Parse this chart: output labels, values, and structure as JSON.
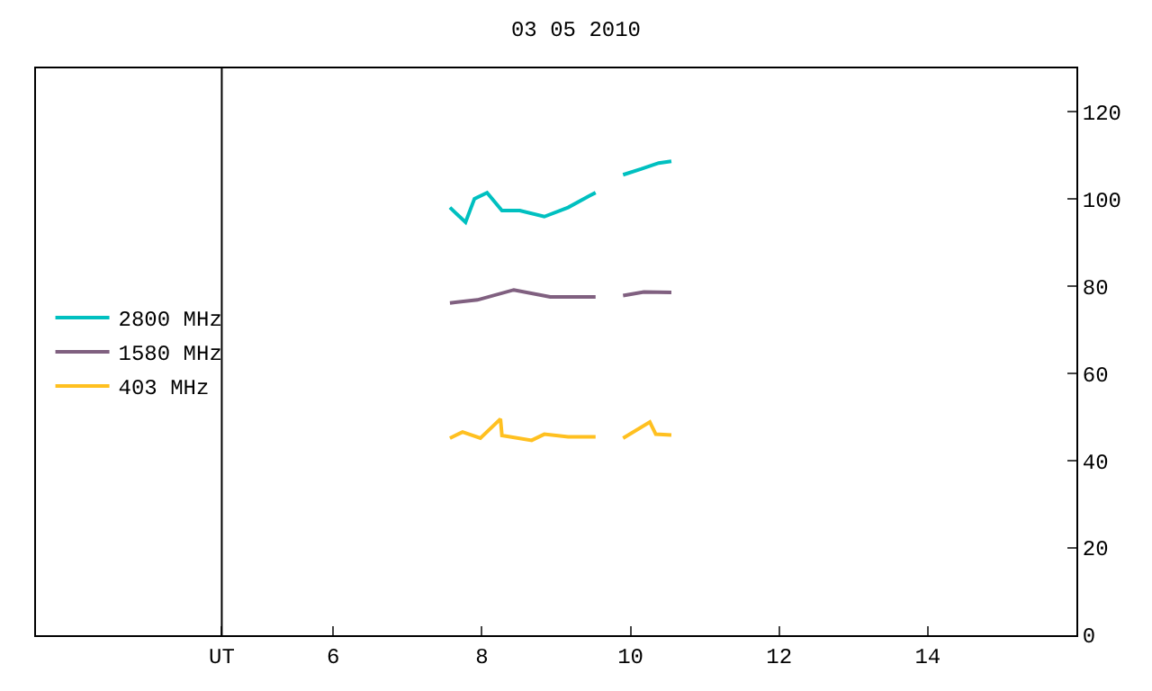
{
  "chart_data": {
    "type": "line",
    "title": "03 05 2010",
    "x": [
      7.57,
      7.78,
      7.9,
      8.07,
      8.27,
      8.51,
      8.84,
      9.16,
      9.45,
      9.53,
      9.7,
      9.9,
      10.14,
      10.38,
      10.55
    ],
    "series": [
      {
        "name": "2800 MHz",
        "color": "#00c0c0",
        "values": [
          98.1,
          94.7,
          100.1,
          101.5,
          97.4,
          97.4,
          96.0,
          98.1,
          100.8,
          101.5,
          null,
          105.6,
          106.9,
          108.3,
          108.7
        ]
      },
      {
        "name": "1580 MHz",
        "color": "#806080",
        "x": [
          7.57,
          7.94,
          8.43,
          8.92,
          9.53,
          9.7,
          9.9,
          10.18,
          10.55
        ],
        "values": [
          76.2,
          76.9,
          79.2,
          77.6,
          77.6,
          null,
          77.9,
          78.7,
          78.6
        ]
      },
      {
        "name": "403 MHz",
        "color": "#ffc020",
        "x": [
          7.57,
          7.74,
          7.98,
          8.25,
          8.27,
          8.67,
          8.84,
          9.16,
          9.53,
          9.7,
          9.9,
          10.26,
          10.34,
          10.55
        ],
        "values": [
          45.2,
          46.6,
          45.2,
          49.6,
          45.8,
          44.7,
          46.1,
          45.5,
          45.5,
          null,
          45.2,
          48.9,
          46.1,
          45.9
        ]
      }
    ],
    "xlim": [
      2,
      16
    ],
    "xticks": [
      {
        "value": 4.5,
        "label": "UT"
      },
      6,
      8,
      10,
      12,
      14
    ],
    "ylim": [
      0,
      130
    ],
    "yticks": [
      0,
      20,
      40,
      60,
      80,
      100,
      120
    ],
    "ref_lines": [
      {
        "axis": "x",
        "value": 4.5,
        "color": "#000000"
      }
    ],
    "legend": "left",
    "marker": "none",
    "line_style": "solid"
  }
}
